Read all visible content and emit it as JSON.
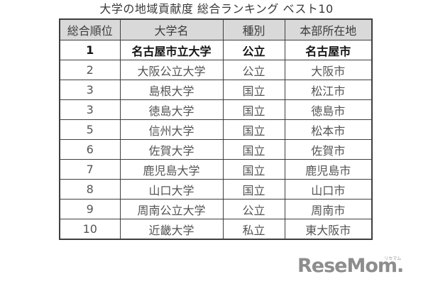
{
  "title": "大学の地域貢献度 総合ランキング ベスト10",
  "chart_data": {
    "type": "table",
    "title": "大学の地域貢献度 総合ランキング ベスト10",
    "columns": [
      "総合順位",
      "大学名",
      "種別",
      "本部所在地"
    ],
    "rows": [
      [
        "1",
        "名古屋市立大学",
        "公立",
        "名古屋市"
      ],
      [
        "2",
        "大阪公立大学",
        "公立",
        "大阪市"
      ],
      [
        "3",
        "島根大学",
        "国立",
        "松江市"
      ],
      [
        "3",
        "徳島大学",
        "国立",
        "徳島市"
      ],
      [
        "5",
        "信州大学",
        "国立",
        "松本市"
      ],
      [
        "6",
        "佐賀大学",
        "国立",
        "佐賀市"
      ],
      [
        "7",
        "鹿児島大学",
        "国立",
        "鹿児島市"
      ],
      [
        "8",
        "山口大学",
        "国立",
        "山口市"
      ],
      [
        "9",
        "周南公立大学",
        "公立",
        "周南市"
      ],
      [
        "10",
        "近畿大学",
        "私立",
        "東大阪市"
      ]
    ],
    "highlight_row": 0,
    "layout": "header row gray, rank-1 row bold"
  },
  "logo": {
    "text": "ReseMom",
    "period": ".",
    "ruby": "リセマム"
  },
  "colors": {
    "header_bg": "#d9d9d9",
    "border": "#3e3e3e",
    "body_text": "#555555",
    "highlight_text": "#141414",
    "title_text": "#3a3a3a",
    "logo": "#8d8d8d"
  }
}
